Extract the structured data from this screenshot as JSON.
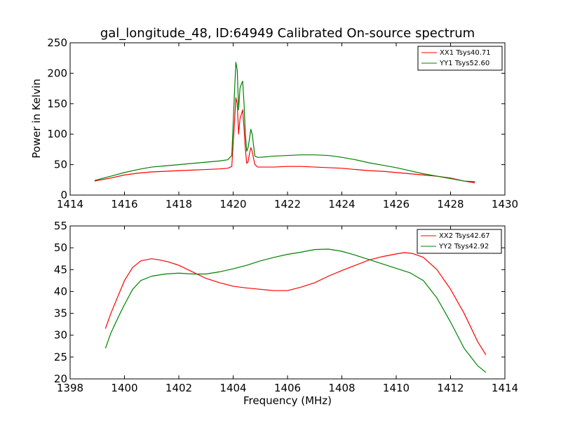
{
  "chart_data": [
    {
      "type": "line",
      "title": "gal_longitude_48, ID:64949 Calibrated On-source spectrum",
      "xlabel": "",
      "ylabel": "Power in Kelvin",
      "xlim": [
        1414,
        1430
      ],
      "ylim": [
        0,
        250
      ],
      "xticks": [
        1414,
        1416,
        1418,
        1420,
        1422,
        1424,
        1426,
        1428,
        1430
      ],
      "yticks": [
        0,
        50,
        100,
        150,
        200,
        250
      ],
      "legend_position": "top-right",
      "grid": false,
      "series": [
        {
          "name": "XX1 Tsys40.71",
          "color": "#ff0000",
          "x": [
            1414.9,
            1415.5,
            1416.0,
            1416.5,
            1417.0,
            1417.5,
            1418.0,
            1418.5,
            1419.0,
            1419.5,
            1419.8,
            1419.95,
            1420.05,
            1420.1,
            1420.15,
            1420.2,
            1420.25,
            1420.3,
            1420.35,
            1420.4,
            1420.45,
            1420.5,
            1420.55,
            1420.6,
            1420.65,
            1420.7,
            1420.75,
            1420.8,
            1420.9,
            1421.0,
            1421.5,
            1422.0,
            1422.5,
            1423.0,
            1423.5,
            1424.0,
            1424.5,
            1425.0,
            1425.5,
            1426.0,
            1426.5,
            1427.0,
            1427.5,
            1428.0,
            1428.5,
            1428.9
          ],
          "values": [
            23,
            28,
            33,
            36,
            38,
            39,
            40,
            41,
            42,
            43,
            44,
            47,
            120,
            160,
            150,
            100,
            125,
            132,
            140,
            110,
            75,
            52,
            55,
            68,
            78,
            72,
            60,
            50,
            46,
            46,
            46,
            47,
            47,
            46,
            45,
            44,
            42,
            40,
            39,
            37,
            35,
            33,
            31,
            28,
            23,
            20
          ]
        },
        {
          "name": "YY1 Tsys52.60",
          "color": "#008000",
          "x": [
            1414.9,
            1415.5,
            1416.0,
            1416.5,
            1417.0,
            1417.5,
            1418.0,
            1418.5,
            1419.0,
            1419.5,
            1419.8,
            1419.95,
            1420.05,
            1420.1,
            1420.15,
            1420.2,
            1420.25,
            1420.3,
            1420.35,
            1420.4,
            1420.45,
            1420.5,
            1420.55,
            1420.6,
            1420.65,
            1420.7,
            1420.75,
            1420.8,
            1420.9,
            1421.0,
            1421.5,
            1422.0,
            1422.5,
            1423.0,
            1423.5,
            1424.0,
            1424.5,
            1425.0,
            1425.5,
            1426.0,
            1426.5,
            1427.0,
            1427.5,
            1428.0,
            1428.5,
            1428.9
          ],
          "values": [
            24,
            31,
            37,
            42,
            46,
            48,
            50,
            52,
            54,
            56,
            58,
            65,
            170,
            218,
            205,
            140,
            175,
            182,
            187,
            150,
            100,
            72,
            78,
            92,
            108,
            100,
            82,
            64,
            62,
            62,
            64,
            65,
            66,
            66,
            65,
            62,
            58,
            53,
            49,
            45,
            40,
            35,
            31,
            27,
            23,
            22
          ]
        }
      ]
    },
    {
      "type": "line",
      "title": "",
      "xlabel": "Frequency (MHz)",
      "ylabel": "",
      "xlim": [
        1398,
        1414
      ],
      "ylim": [
        20,
        55
      ],
      "xticks": [
        1398,
        1400,
        1402,
        1404,
        1406,
        1408,
        1410,
        1412,
        1414
      ],
      "yticks": [
        20,
        25,
        30,
        35,
        40,
        45,
        50,
        55
      ],
      "legend_position": "top-right",
      "grid": false,
      "series": [
        {
          "name": "XX2 Tsys42.67",
          "color": "#ff0000",
          "x": [
            1399.3,
            1399.5,
            1399.8,
            1400.0,
            1400.3,
            1400.6,
            1401.0,
            1401.3,
            1401.6,
            1402.0,
            1402.5,
            1403.0,
            1403.5,
            1404.0,
            1404.5,
            1405.0,
            1405.5,
            1406.0,
            1406.5,
            1407.0,
            1407.5,
            1408.0,
            1408.5,
            1409.0,
            1409.5,
            1410.0,
            1410.3,
            1410.6,
            1411.0,
            1411.5,
            1412.0,
            1412.5,
            1413.0,
            1413.3
          ],
          "values": [
            31.5,
            35,
            39.5,
            42.5,
            45.5,
            47,
            47.5,
            47.2,
            46.8,
            46,
            44.5,
            43,
            42,
            41.2,
            40.8,
            40.5,
            40.2,
            40.2,
            41,
            42,
            43.5,
            44.8,
            46,
            47.2,
            48,
            48.6,
            48.9,
            48.7,
            47.8,
            45,
            40.5,
            35,
            28.5,
            25.5
          ]
        },
        {
          "name": "YY2 Tsys42.92",
          "color": "#008000",
          "x": [
            1399.3,
            1399.5,
            1399.8,
            1400.0,
            1400.3,
            1400.6,
            1401.0,
            1401.5,
            1402.0,
            1402.5,
            1403.0,
            1403.5,
            1404.0,
            1404.5,
            1405.0,
            1405.5,
            1406.0,
            1406.5,
            1407.0,
            1407.5,
            1408.0,
            1408.5,
            1409.0,
            1409.5,
            1410.0,
            1410.5,
            1411.0,
            1411.5,
            1412.0,
            1412.5,
            1413.0,
            1413.3
          ],
          "values": [
            27,
            30.5,
            34.5,
            37,
            40.5,
            42.5,
            43.5,
            44,
            44.2,
            44,
            44,
            44.5,
            45.2,
            46,
            47,
            47.8,
            48.5,
            49,
            49.6,
            49.7,
            49.2,
            48.3,
            47.3,
            46.3,
            45.3,
            44.3,
            42.5,
            38.5,
            33,
            27,
            23,
            21.5
          ]
        }
      ]
    }
  ]
}
